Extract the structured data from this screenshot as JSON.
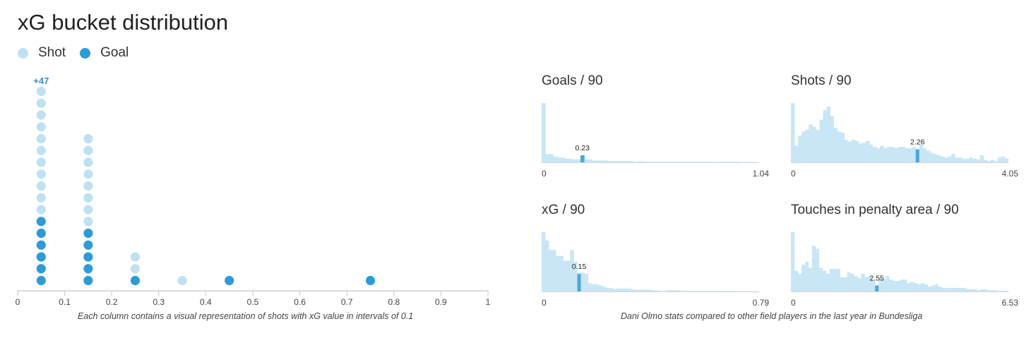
{
  "title": "xG bucket distribution",
  "legend": [
    {
      "label": "Shot",
      "color": "#bfe1f2"
    },
    {
      "label": "Goal",
      "color": "#2f9bd6"
    }
  ],
  "colors": {
    "shot": "#bfe1f2",
    "goal": "#2f9bd6",
    "overflow_label": "#3a8fc7",
    "hist_bar": "#c9e6f6",
    "hist_highlight": "#4aa8dc"
  },
  "bucket_caption": "Each column contains a visual representation of shots with xG value in intervals of 0.1",
  "compare_caption": "Dani Olmo stats compared to other field players in the last year in Bundesliga",
  "chart_data": [
    {
      "type": "scatter",
      "title": "xG bucket distribution",
      "x_ticks": [
        "0",
        "0.1",
        "0.2",
        "0.3",
        "0.4",
        "0.5",
        "0.6",
        "0.7",
        "0.8",
        "0.9",
        "1"
      ],
      "xlim": [
        0,
        1
      ],
      "buckets": [
        {
          "x": 0.05,
          "goals": 6,
          "shots_displayed": 11,
          "overflow_label": "+47"
        },
        {
          "x": 0.15,
          "goals": 5,
          "shots_displayed": 8,
          "overflow_label": ""
        },
        {
          "x": 0.25,
          "goals": 1,
          "shots_displayed": 2,
          "overflow_label": ""
        },
        {
          "x": 0.35,
          "goals": 0,
          "shots_displayed": 1,
          "overflow_label": ""
        },
        {
          "x": 0.45,
          "goals": 1,
          "shots_displayed": 0,
          "overflow_label": ""
        },
        {
          "x": 0.75,
          "goals": 1,
          "shots_displayed": 0,
          "overflow_label": ""
        }
      ]
    },
    {
      "type": "bar",
      "title": "Goals / 90",
      "xmin_label": "0",
      "xmax_label": "1.04",
      "xlim": [
        0,
        1.04
      ],
      "highlight": {
        "value": 0.23,
        "label": "0.23",
        "bin": 10
      },
      "values": [
        100,
        14,
        14,
        10,
        8,
        8,
        6,
        6,
        5,
        5,
        12,
        5,
        5,
        3,
        3,
        3,
        3,
        2,
        2,
        2,
        2,
        2,
        2,
        2,
        1,
        2,
        1,
        1,
        1,
        1,
        1,
        1,
        1,
        1,
        1,
        1,
        1,
        1,
        1,
        1,
        1,
        1,
        1,
        1,
        0.5,
        1,
        1,
        1,
        1,
        1,
        1,
        0.5,
        0.5,
        1,
        0.5,
        0.5
      ]
    },
    {
      "type": "bar",
      "title": "Shots / 90",
      "xmin_label": "0",
      "xmax_label": "4.05",
      "xlim": [
        0,
        4.05
      ],
      "highlight": {
        "value": 2.26,
        "label": "2.26",
        "bin": 35
      },
      "values": [
        100,
        28,
        45,
        52,
        55,
        64,
        60,
        55,
        72,
        88,
        94,
        78,
        58,
        52,
        50,
        38,
        35,
        38,
        36,
        32,
        33,
        36,
        30,
        26,
        24,
        28,
        24,
        26,
        26,
        24,
        26,
        26,
        24,
        24,
        26,
        22,
        30,
        24,
        20,
        16,
        14,
        12,
        10,
        8,
        10,
        14,
        8,
        8,
        6,
        6,
        8,
        6,
        5,
        12,
        4,
        2,
        4,
        2,
        8,
        10,
        6
      ]
    },
    {
      "type": "bar",
      "title": "xG / 90",
      "xmin_label": "0",
      "xmax_label": "0.79",
      "xlim": [
        0,
        0.79
      ],
      "highlight": {
        "value": 0.15,
        "label": "0.15",
        "bin": 10
      },
      "values": [
        100,
        86,
        70,
        70,
        60,
        60,
        52,
        52,
        70,
        50,
        30,
        32,
        30,
        14,
        12,
        12,
        10,
        8,
        6,
        6,
        4,
        5,
        5,
        5,
        5,
        4,
        3,
        3,
        3,
        3,
        3,
        2,
        2,
        1,
        1,
        2,
        2,
        2,
        2,
        1,
        1,
        1,
        1,
        1,
        1,
        1,
        1,
        1,
        1,
        1,
        1,
        1,
        1,
        1,
        0.5,
        0.5,
        0.5,
        0.5,
        0.5,
        0.5,
        0.5
      ]
    },
    {
      "type": "bar",
      "title": "Touches in penalty area / 90",
      "xmin_label": "0",
      "xmax_label": "6.53",
      "xlim": [
        0,
        6.53
      ],
      "highlight": {
        "value": 2.55,
        "label": "2.55",
        "bin": 24
      },
      "values": [
        100,
        35,
        30,
        45,
        50,
        40,
        77,
        72,
        40,
        35,
        30,
        38,
        38,
        38,
        24,
        24,
        32,
        30,
        26,
        22,
        30,
        24,
        26,
        20,
        10,
        22,
        20,
        26,
        20,
        18,
        18,
        20,
        20,
        14,
        16,
        14,
        12,
        14,
        12,
        8,
        10,
        12,
        8,
        6,
        6,
        6,
        6,
        6,
        6,
        6,
        4,
        4,
        4,
        2,
        4,
        4,
        2,
        2,
        2,
        1,
        1,
        1
      ]
    }
  ]
}
